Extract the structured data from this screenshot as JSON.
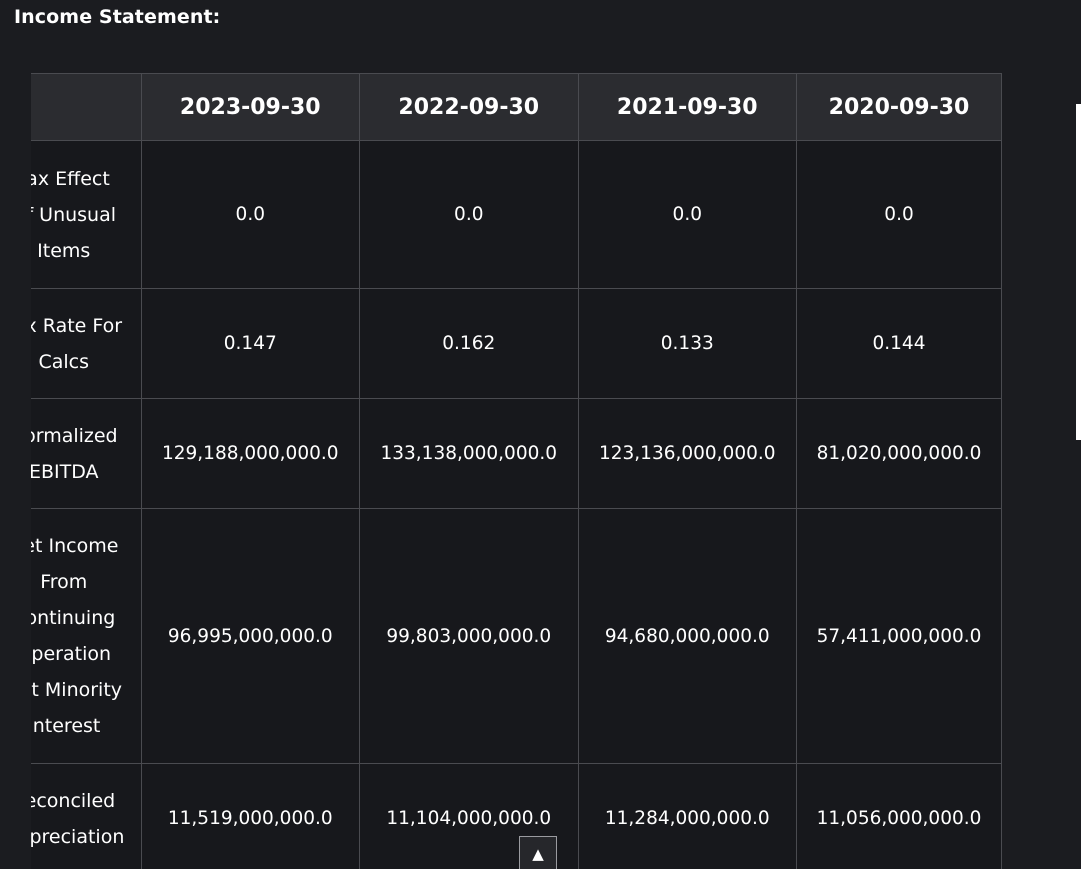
{
  "section": {
    "title": "Income Statement:"
  },
  "table": {
    "corner_header": "",
    "columns": [
      "2023-09-30",
      "2022-09-30",
      "2021-09-30",
      "2020-09-30"
    ],
    "rows": [
      {
        "label": "Tax Effect\nOf Unusual\nItems",
        "values": [
          "0.0",
          "0.0",
          "0.0",
          "0.0"
        ]
      },
      {
        "label": "Tax Rate For\nCalcs",
        "values": [
          "0.147",
          "0.162",
          "0.133",
          "0.144"
        ]
      },
      {
        "label": "Normalized\nEBITDA",
        "values": [
          "129,188,000,000.0",
          "133,138,000,000.0",
          "123,136,000,000.0",
          "81,020,000,000.0"
        ]
      },
      {
        "label": "Net Income\nFrom\nContinuing\nOperation\nNet Minority\nInterest",
        "values": [
          "96,995,000,000.0",
          "99,803,000,000.0",
          "94,680,000,000.0",
          "57,411,000,000.0"
        ]
      },
      {
        "label": "Reconciled\nDepreciation",
        "values": [
          "11,519,000,000.0",
          "11,104,000,000.0",
          "11,284,000,000.0",
          "11,056,000,000.0"
        ]
      }
    ]
  },
  "controls": {
    "back_to_top_icon": "up-triangle-icon",
    "back_to_top_glyph": "▲"
  }
}
